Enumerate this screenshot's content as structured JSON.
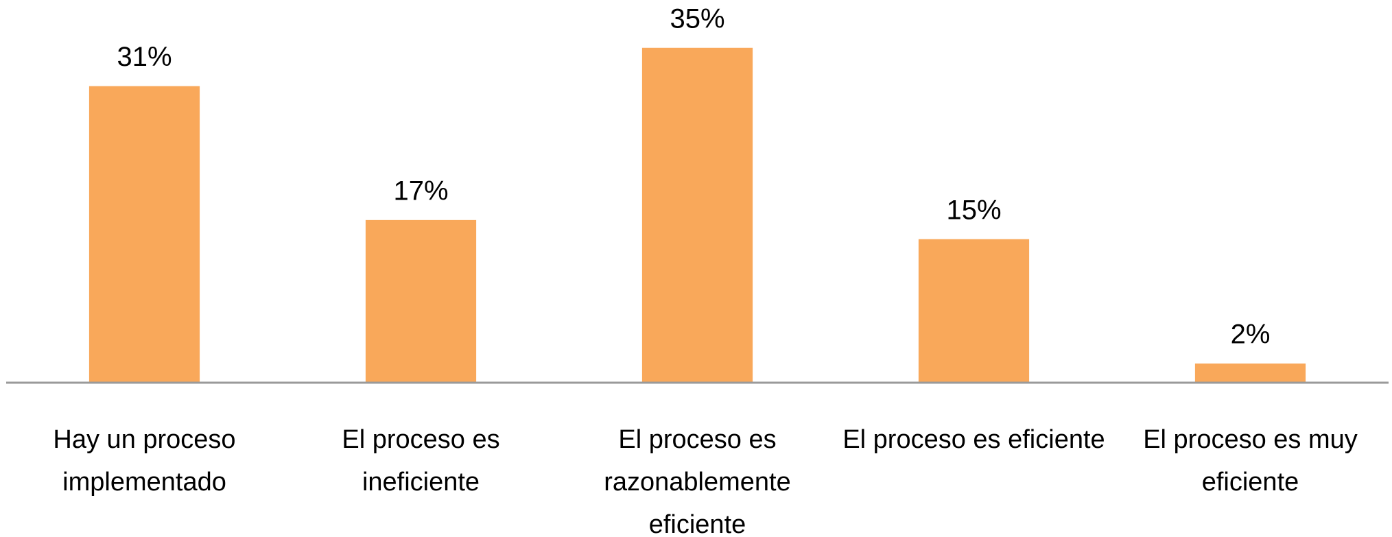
{
  "chart_data": {
    "type": "bar",
    "categories": [
      "Hay un proceso implementado",
      "El proceso es ineficiente",
      "El proceso es razonablemente eficiente",
      "El proceso es eficiente",
      "El proceso es muy eficiente"
    ],
    "values": [
      31,
      17,
      35,
      15,
      2
    ],
    "value_labels": [
      "31%",
      "17%",
      "35%",
      "15%",
      "2%"
    ],
    "color": "#f9a85a",
    "ylim": [
      0,
      40
    ]
  }
}
